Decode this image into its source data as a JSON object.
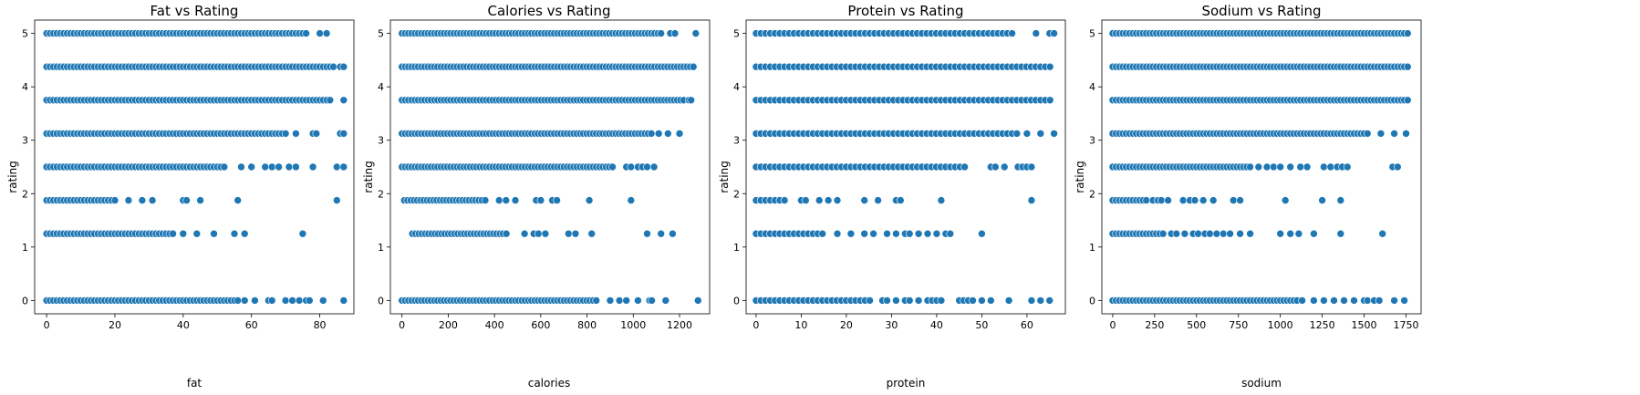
{
  "colors": {
    "point": "#1f77b4",
    "edge": "#ffffff"
  },
  "chart_data": [
    {
      "type": "scatter",
      "title": "Fat vs Rating",
      "xlabel": "fat",
      "ylabel": "rating",
      "xlim": [
        -3.5,
        90
      ],
      "ylim": [
        -0.25,
        5.25
      ],
      "xticks": [
        0,
        20,
        40,
        60,
        80
      ],
      "xtick_labels": [
        "0",
        "20",
        "40",
        "60",
        "80"
      ],
      "yticks": [
        0,
        1,
        2,
        3,
        4,
        5
      ],
      "ytick_labels": [
        "0",
        "1",
        "2",
        "3",
        "4",
        "5"
      ],
      "levels": [
        {
          "y": 5,
          "xmin": 0,
          "xmax": 76,
          "extra": [
            80,
            82
          ]
        },
        {
          "y": 4.375,
          "xmin": 0,
          "xmax": 84,
          "extra": [
            86,
            87
          ]
        },
        {
          "y": 3.75,
          "xmin": 0,
          "xmax": 83,
          "extra": [
            87
          ]
        },
        {
          "y": 3.125,
          "xmin": 0,
          "xmax": 70,
          "extra": [
            73,
            78,
            79,
            86,
            87
          ]
        },
        {
          "y": 2.5,
          "xmin": 0,
          "xmax": 52,
          "extra": [
            57,
            60,
            64,
            66,
            68,
            71,
            73,
            78,
            85,
            87
          ]
        },
        {
          "y": 1.875,
          "xmin": 0,
          "xmax": 20,
          "extra": [
            24,
            28,
            31,
            40,
            41,
            45,
            56,
            85
          ]
        },
        {
          "y": 1.25,
          "xmin": 0,
          "xmax": 36,
          "extra": [
            37,
            40,
            44,
            49,
            55,
            58,
            75
          ]
        },
        {
          "y": 0,
          "xmin": 0,
          "xmax": 56,
          "extra": [
            58,
            61,
            65,
            66,
            70,
            72,
            74,
            76,
            77,
            81,
            87
          ]
        }
      ]
    },
    {
      "type": "scatter",
      "title": "Calories vs Rating",
      "xlabel": "calories",
      "ylabel": "rating",
      "xlim": [
        -50,
        1330
      ],
      "ylim": [
        -0.25,
        5.25
      ],
      "xticks": [
        0,
        200,
        400,
        600,
        800,
        1000,
        1200
      ],
      "xtick_labels": [
        "0",
        "200",
        "400",
        "600",
        "800",
        "1000",
        "1200"
      ],
      "yticks": [
        0,
        1,
        2,
        3,
        4,
        5
      ],
      "ytick_labels": [
        "0",
        "1",
        "2",
        "3",
        "4",
        "5"
      ],
      "levels": [
        {
          "y": 5,
          "xmin": 0,
          "xmax": 1130,
          "extra": [
            1160,
            1180,
            1270
          ]
        },
        {
          "y": 4.375,
          "xmin": 0,
          "xmax": 1270,
          "extra": []
        },
        {
          "y": 3.75,
          "xmin": 0,
          "xmax": 1230,
          "extra": [
            1240,
            1250
          ]
        },
        {
          "y": 3.125,
          "xmin": 0,
          "xmax": 1090,
          "extra": [
            1110,
            1150,
            1200
          ]
        },
        {
          "y": 2.5,
          "xmin": 0,
          "xmax": 920,
          "extra": [
            970,
            990,
            1020,
            1040,
            1060,
            1090
          ]
        },
        {
          "y": 1.875,
          "xmin": 10,
          "xmax": 360,
          "extra": [
            420,
            450,
            490,
            580,
            600,
            650,
            670,
            810,
            990
          ]
        },
        {
          "y": 1.25,
          "xmin": 45,
          "xmax": 460,
          "extra": [
            530,
            570,
            590,
            620,
            720,
            750,
            820,
            1060,
            1120,
            1170
          ]
        },
        {
          "y": 0,
          "xmin": 0,
          "xmax": 840,
          "extra": [
            900,
            940,
            970,
            1020,
            1070,
            1080,
            1140,
            1280
          ]
        }
      ]
    },
    {
      "type": "scatter",
      "title": "Protein vs Rating",
      "xlabel": "protein",
      "ylabel": "rating",
      "xlim": [
        -2.2,
        68.5
      ],
      "ylim": [
        -0.25,
        5.25
      ],
      "xticks": [
        0,
        10,
        20,
        30,
        40,
        50,
        60
      ],
      "xtick_labels": [
        "0",
        "10",
        "20",
        "30",
        "40",
        "50",
        "60"
      ],
      "yticks": [
        0,
        1,
        2,
        3,
        4,
        5
      ],
      "ytick_labels": [
        "0",
        "1",
        "2",
        "3",
        "4",
        "5"
      ],
      "levels": [
        {
          "y": 5,
          "xmin": 0,
          "xmax": 57,
          "extra": [
            62,
            65,
            66
          ]
        },
        {
          "y": 4.375,
          "xmin": 0,
          "xmax": 66,
          "extra": []
        },
        {
          "y": 3.75,
          "xmin": 0,
          "xmax": 66,
          "extra": []
        },
        {
          "y": 3.125,
          "xmin": 0,
          "xmax": 58,
          "extra": [
            60,
            63,
            66
          ]
        },
        {
          "y": 2.5,
          "xmin": 0,
          "xmax": 47,
          "extra": [
            52,
            53,
            55,
            58,
            59,
            60,
            61
          ]
        },
        {
          "y": 1.875,
          "xmin": 0,
          "xmax": 7,
          "extra": [
            10,
            11,
            14,
            16,
            18,
            24,
            27,
            31,
            32,
            41,
            61
          ]
        },
        {
          "y": 1.25,
          "xmin": 0,
          "xmax": 15,
          "extra": [
            18,
            21,
            24,
            26,
            29,
            31,
            33,
            34,
            36,
            38,
            40,
            42,
            43,
            50
          ]
        },
        {
          "y": 0,
          "xmin": 0,
          "xmax": 26,
          "extra": [
            28,
            29,
            31,
            33,
            34,
            36,
            38,
            39,
            40,
            41,
            45,
            46,
            47,
            48,
            50,
            52,
            56,
            61,
            63,
            65
          ]
        }
      ]
    },
    {
      "type": "scatter",
      "title": "Sodium vs Rating",
      "xlabel": "sodium",
      "ylabel": "rating",
      "xlim": [
        -65,
        1840
      ],
      "ylim": [
        -0.25,
        5.25
      ],
      "xticks": [
        0,
        250,
        500,
        750,
        1000,
        1250,
        1500,
        1750
      ],
      "xtick_labels": [
        "0",
        "250",
        "500",
        "750",
        "1000",
        "1250",
        "1500",
        "1750"
      ],
      "yticks": [
        0,
        1,
        2,
        3,
        4,
        5
      ],
      "ytick_labels": [
        "0",
        "1",
        "2",
        "3",
        "4",
        "5"
      ],
      "levels": [
        {
          "y": 5,
          "xmin": 0,
          "xmax": 1770,
          "extra": []
        },
        {
          "y": 4.375,
          "xmin": 0,
          "xmax": 1770,
          "extra": []
        },
        {
          "y": 3.75,
          "xmin": 0,
          "xmax": 1770,
          "extra": []
        },
        {
          "y": 3.125,
          "xmin": 0,
          "xmax": 1530,
          "extra": [
            1600,
            1680,
            1750
          ]
        },
        {
          "y": 2.5,
          "xmin": 0,
          "xmax": 820,
          "extra": [
            870,
            920,
            960,
            1000,
            1060,
            1120,
            1160,
            1260,
            1300,
            1340,
            1370,
            1400,
            1670,
            1700
          ]
        },
        {
          "y": 1.875,
          "xmin": 0,
          "xmax": 200,
          "extra": [
            240,
            270,
            290,
            330,
            420,
            460,
            490,
            540,
            600,
            720,
            760,
            1030,
            1250,
            1360
          ]
        },
        {
          "y": 1.25,
          "xmin": 0,
          "xmax": 300,
          "extra": [
            350,
            380,
            430,
            480,
            510,
            550,
            580,
            620,
            660,
            700,
            760,
            820,
            1000,
            1060,
            1110,
            1200,
            1360,
            1610
          ]
        },
        {
          "y": 0,
          "xmin": 0,
          "xmax": 1100,
          "extra": [
            1130,
            1200,
            1260,
            1320,
            1380,
            1440,
            1500,
            1520,
            1560,
            1590,
            1680,
            1740
          ]
        }
      ]
    }
  ]
}
